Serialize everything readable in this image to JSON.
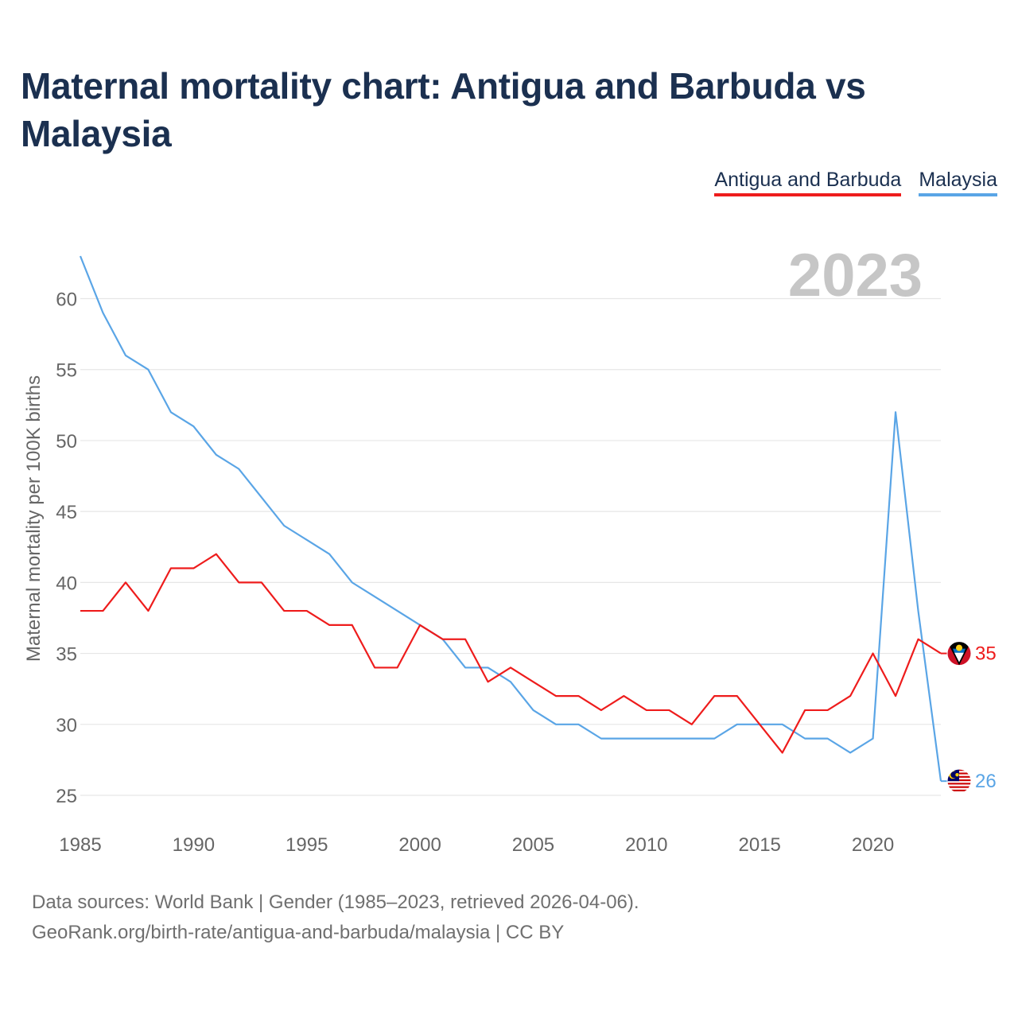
{
  "title": "Maternal mortality chart: Antigua and Barbuda vs Malaysia",
  "legend": [
    "Antigua and Barbuda",
    "Malaysia"
  ],
  "source": {
    "line1": "Data sources: World Bank | Gender (1985–2023, retrieved 2026-04-06).",
    "line2": "GeoRank.org/birth-rate/antigua-and-barbuda/malaysia | CC BY"
  },
  "chart_data": {
    "type": "line",
    "year_label": "2023",
    "ylabel": "Maternal mortality per 100K births",
    "xlabel": "",
    "xlim": [
      1985,
      2023
    ],
    "ylim": [
      25,
      63
    ],
    "x_ticks": [
      1985,
      1990,
      1995,
      2000,
      2005,
      2010,
      2015,
      2020
    ],
    "y_ticks": [
      25,
      30,
      35,
      40,
      45,
      50,
      55,
      60
    ],
    "grid": true,
    "x": [
      1985,
      1986,
      1987,
      1988,
      1989,
      1990,
      1991,
      1992,
      1993,
      1994,
      1995,
      1996,
      1997,
      1998,
      1999,
      2000,
      2001,
      2002,
      2003,
      2004,
      2005,
      2006,
      2007,
      2008,
      2009,
      2010,
      2011,
      2012,
      2013,
      2014,
      2015,
      2016,
      2017,
      2018,
      2019,
      2020,
      2021,
      2022,
      2023
    ],
    "series": [
      {
        "name": "Antigua and Barbuda",
        "color": "#ee1c1c",
        "end_label": "35",
        "flag": "antigua-and-barbuda-flag",
        "values": [
          38,
          38,
          40,
          38,
          41,
          41,
          42,
          40,
          40,
          38,
          38,
          37,
          37,
          34,
          34,
          37,
          36,
          36,
          33,
          34,
          33,
          32,
          32,
          31,
          32,
          31,
          31,
          30,
          32,
          32,
          30,
          28,
          31,
          31,
          32,
          35,
          32,
          36,
          35
        ]
      },
      {
        "name": "Malaysia",
        "color": "#5aa5e6",
        "end_label": "26",
        "flag": "malaysia-flag",
        "values": [
          63,
          59,
          56,
          55,
          52,
          51,
          49,
          48,
          46,
          44,
          43,
          42,
          40,
          39,
          38,
          37,
          36,
          34,
          34,
          33,
          31,
          30,
          30,
          29,
          29,
          29,
          29,
          29,
          29,
          30,
          30,
          30,
          29,
          29,
          28,
          29,
          52,
          38,
          26
        ]
      }
    ]
  }
}
